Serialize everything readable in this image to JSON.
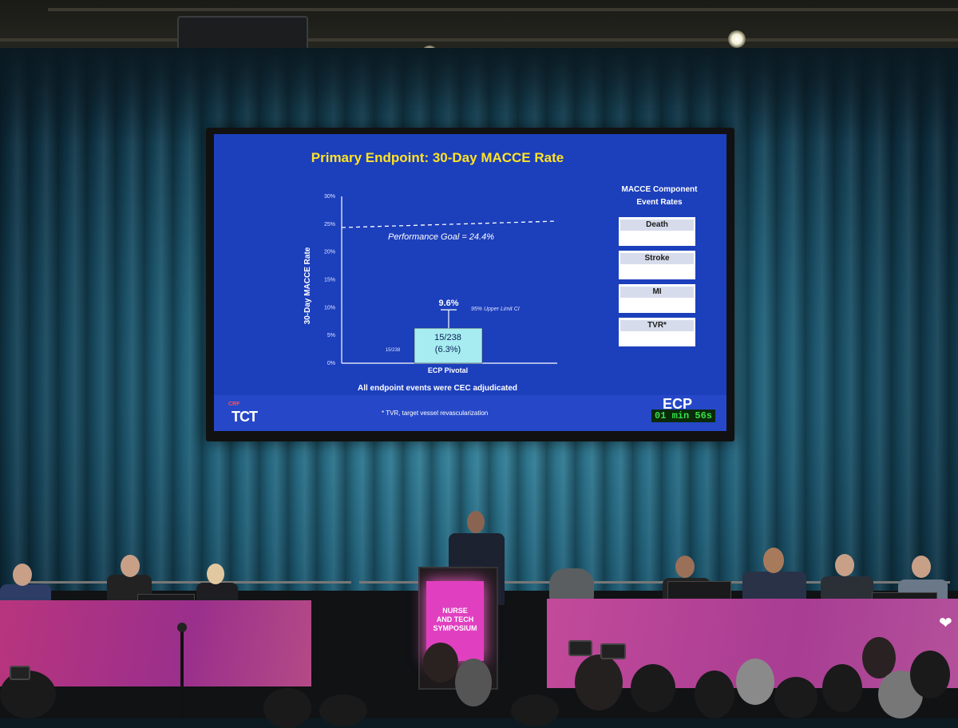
{
  "slide": {
    "title": "Primary Endpoint: 30-Day MACCE Rate",
    "footnote": "All endpoint events were CEC adjudicated",
    "tvr_note": "* TVR, target vessel revascularization",
    "crf_logo": "CRF",
    "tct_logo": "TCT",
    "ecp_logo": "ECP",
    "timer": "01 min 56s"
  },
  "chart_data": {
    "type": "bar",
    "ylabel": "30-Day MACCE Rate",
    "yticks": [
      "0%",
      "5%",
      "10%",
      "15%",
      "20%",
      "25%",
      "30%"
    ],
    "ylim": [
      0,
      30
    ],
    "categories": [
      "ECP Pivotal"
    ],
    "values": [
      6.3
    ],
    "bar_label_line1": "15/238",
    "bar_label_line2": "(6.3%)",
    "small_left_label": "15/238",
    "upper_ci_value": 9.6,
    "upper_ci_label": "9.6%",
    "upper_ci_caption": "95% Upper Limit CI",
    "performance_goal": 24.4,
    "performance_goal_label": "Performance Goal = 24.4%"
  },
  "components": {
    "heading_line1": "MACCE Component",
    "heading_line2": "Event Rates",
    "items": [
      {
        "label": "Death"
      },
      {
        "label": "Stroke"
      },
      {
        "label": "MI"
      },
      {
        "label": "TVR*"
      }
    ]
  },
  "podium": {
    "line1": "NURSE",
    "line2": "AND TECH",
    "line3": "SYMPOSIUM"
  }
}
